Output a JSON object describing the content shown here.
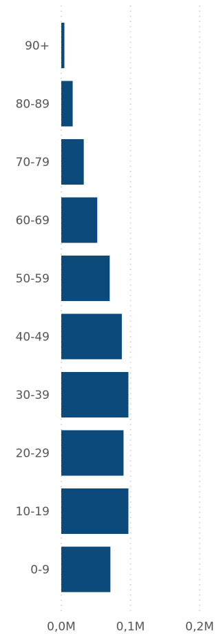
{
  "chart_data": {
    "type": "bar",
    "orientation": "horizontal",
    "title": "",
    "xlabel": "",
    "ylabel": "",
    "categories": [
      "90+",
      "80-89",
      "70-79",
      "60-69",
      "50-59",
      "40-49",
      "30-39",
      "20-29",
      "10-19",
      "0-9"
    ],
    "values": [
      4500,
      16500,
      32500,
      52000,
      70000,
      87500,
      97000,
      90000,
      97000,
      71000
    ],
    "xlim": [
      0,
      0.2
    ],
    "x_ticks": [
      0,
      0.1,
      0.2
    ],
    "x_tick_labels": [
      "0,0M",
      "0,1M",
      "0,2M"
    ],
    "grid": "vertical-dotted",
    "bar_color": "#0b4a7a",
    "grid_color": "#c8c8c8"
  }
}
